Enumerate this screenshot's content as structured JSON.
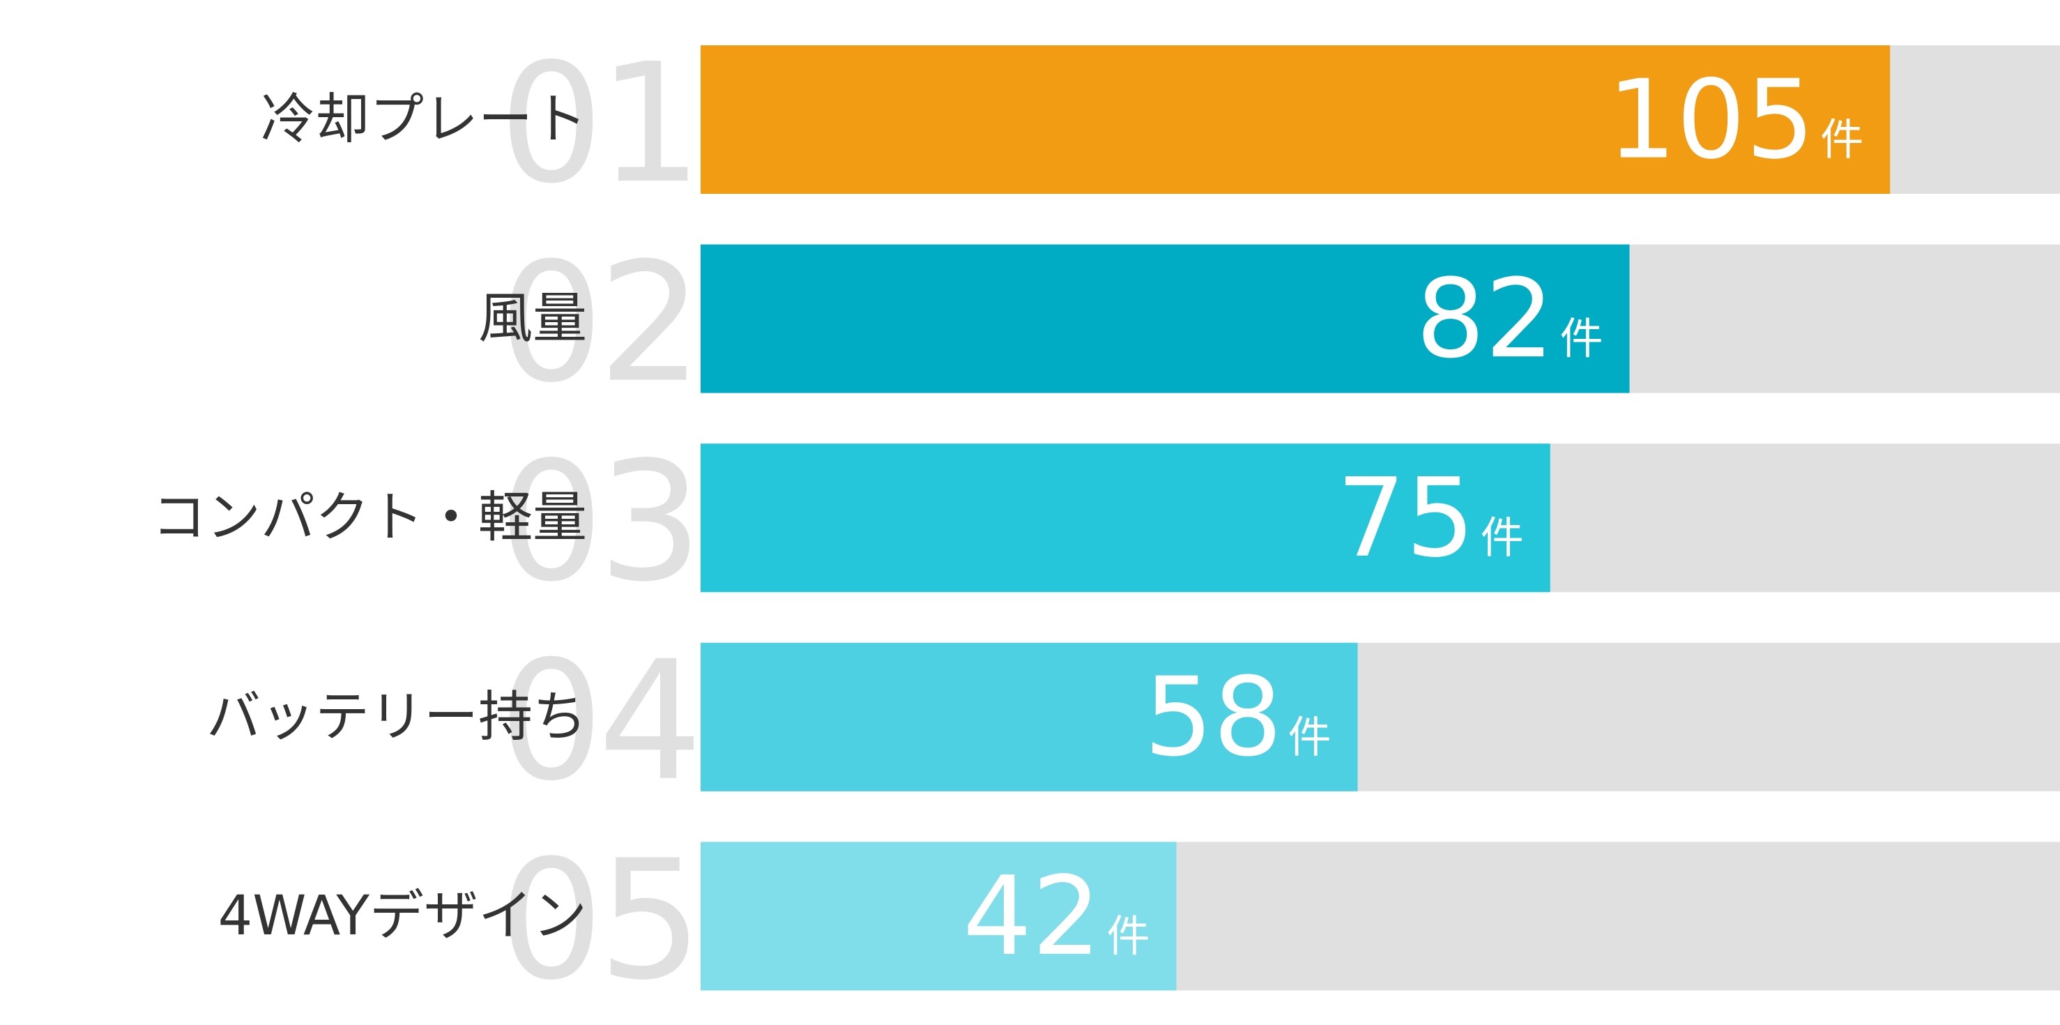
{
  "chart_data": {
    "type": "bar",
    "categories": [
      "冷却プレート",
      "風量",
      "コンパクト・軽量",
      "バッテリー持ち",
      "4WAYデザイン"
    ],
    "ranks": [
      "01",
      "02",
      "03",
      "04",
      "05"
    ],
    "values": [
      105,
      82,
      75,
      58,
      42
    ],
    "unit": "件",
    "colors": [
      "#f29c13",
      "#00acc4",
      "#26c6da",
      "#4dd0e1",
      "#80deea"
    ],
    "xlim": [
      0,
      120
    ]
  }
}
